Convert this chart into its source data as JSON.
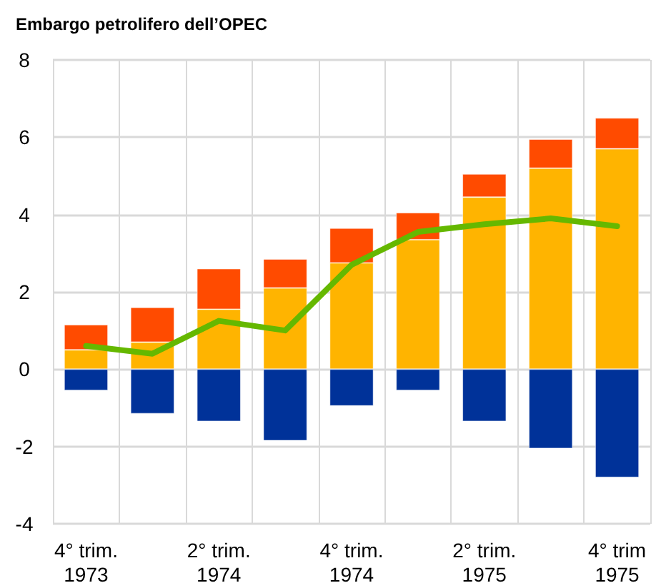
{
  "chart_data": {
    "type": "bar",
    "title": "Embargo petrolifero dell’OPEC",
    "stacked": true,
    "grid": true,
    "categories": [
      "4° trim.\n1973",
      null,
      "2° trim.\n1974",
      null,
      "4° trim.\n1974",
      null,
      "2° trim.\n1975",
      null,
      "4° trim\n1975"
    ],
    "ylim": [
      -4,
      8
    ],
    "yticks": [
      -4,
      -2,
      0,
      2,
      4,
      6,
      8
    ],
    "series": [
      {
        "color": "#ffb400",
        "values": [
          0.5,
          0.7,
          1.55,
          2.1,
          2.75,
          3.35,
          4.45,
          5.2,
          5.7
        ]
      },
      {
        "color": "#ff4b00",
        "values": [
          0.65,
          0.9,
          1.05,
          0.75,
          0.9,
          0.7,
          0.6,
          0.75,
          0.8
        ]
      },
      {
        "color": "#003299",
        "values": [
          -0.55,
          -1.15,
          -1.35,
          -1.85,
          -0.95,
          -0.55,
          -1.35,
          -2.05,
          -2.8
        ]
      },
      {
        "type": "line",
        "color": "#65b800",
        "marker": "none",
        "line_style": "solid",
        "values": [
          0.6,
          0.4,
          1.25,
          1.0,
          2.7,
          3.55,
          3.75,
          3.9,
          3.7
        ]
      }
    ]
  }
}
